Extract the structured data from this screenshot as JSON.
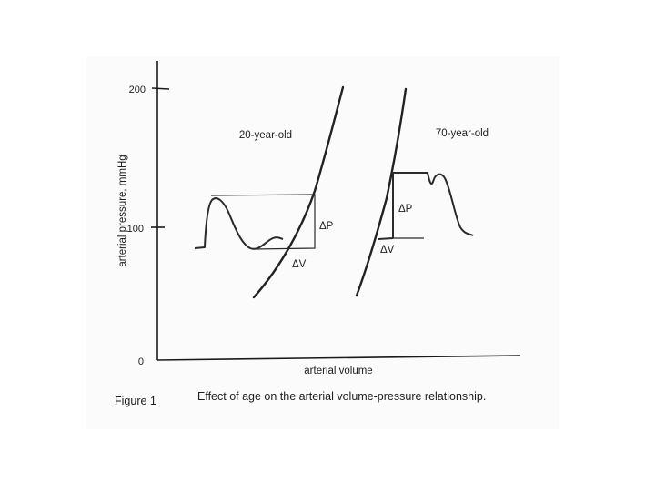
{
  "figure": {
    "y_axis_label": "arterial pressure, mmHg",
    "x_axis_label": "arterial volume",
    "y_ticks": [
      "200",
      "100",
      "0"
    ],
    "panels": [
      {
        "title": "20-year-old",
        "delta_p": "ΔP",
        "delta_v": "ΔV"
      },
      {
        "title": "70-year-old",
        "delta_p": "ΔP",
        "delta_v": "ΔV"
      }
    ],
    "caption": {
      "number": "Figure 1",
      "text": "Effect of age on the arterial volume-pressure relationship."
    }
  }
}
